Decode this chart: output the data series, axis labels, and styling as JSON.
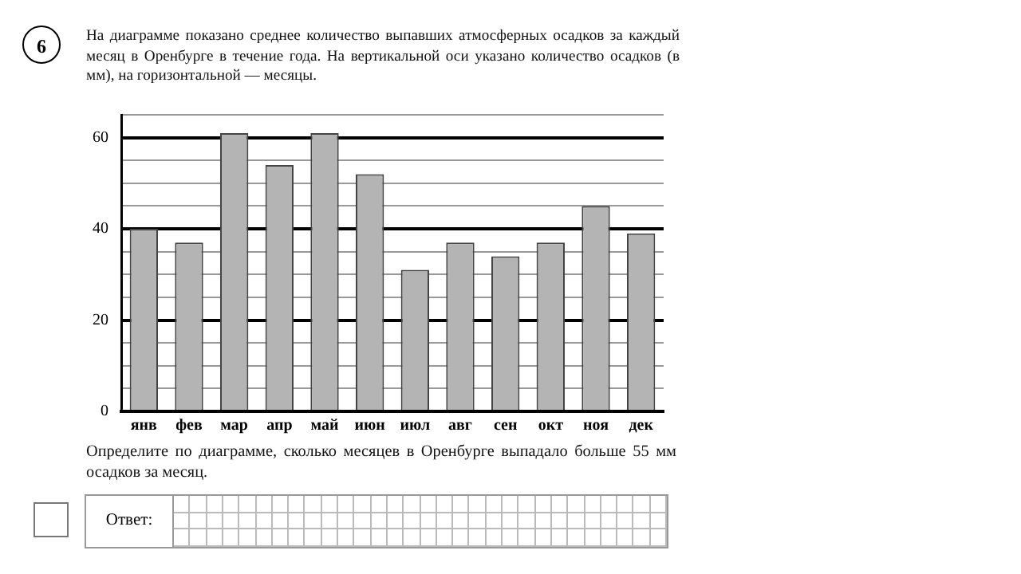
{
  "chart_data": {
    "type": "bar",
    "title": "На диаграмме показано среднее количество выпавших атмосферных осадков за каждый месяц в Оренбурге в течение года. На вертикальной оси указано количество осадков (в мм), на горизонтальной — месяцы.",
    "categories": [
      "янв",
      "фев",
      "мар",
      "апр",
      "май",
      "июн",
      "июл",
      "авг",
      "сен",
      "окт",
      "ноя",
      "дек"
    ],
    "values": [
      40,
      37,
      61,
      54,
      61,
      52,
      31,
      37,
      34,
      37,
      45,
      39
    ],
    "color": "#b4b4b4",
    "ylim": [
      0,
      65
    ],
    "yticks": [
      0,
      {
        "value": 5,
        "label": null
      },
      {
        "value": 10,
        "label": null
      },
      {
        "value": 15,
        "label": null
      },
      20,
      {
        "value": 25,
        "label": null
      },
      {
        "value": 30,
        "label": null
      },
      {
        "value": 35,
        "label": null
      },
      40,
      {
        "value": 45,
        "label": null
      },
      {
        "value": 50,
        "label": null
      },
      {
        "value": 55,
        "label": null
      },
      60,
      {
        "value": 65,
        "label": null
      }
    ],
    "grid": "y",
    "annotations": [
      "6",
      "Определите по диаграмме, сколько месяцев в Оренбурге выпадало больше 55 мм осадков за месяц.",
      "Ответ:"
    ]
  }
}
